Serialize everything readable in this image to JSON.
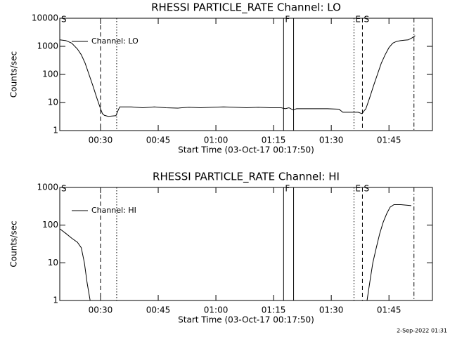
{
  "chart_data": [
    {
      "type": "line",
      "title": "RHESSI PARTICLE_RATE Channel: LO",
      "xlabel": "Start Time (03-Oct-17 00:17:50)",
      "ylabel": "Counts/sec",
      "log_y": true,
      "legend": "upper left",
      "xlim": [
        19.4,
        116.3
      ],
      "ylim": [
        1,
        10000
      ],
      "xticks": [
        {
          "value": 30,
          "label": "00:30"
        },
        {
          "value": 45,
          "label": "00:45"
        },
        {
          "value": 60,
          "label": "01:00"
        },
        {
          "value": 75,
          "label": "01:15"
        },
        {
          "value": 90,
          "label": "01:30"
        },
        {
          "value": 105,
          "label": "01:45"
        }
      ],
      "yticks": [
        1,
        10,
        100,
        1000,
        10000
      ],
      "x": [
        19.4,
        21,
        22.5,
        24,
        25,
        26,
        27,
        28,
        29,
        30,
        30.5,
        31,
        32,
        33,
        34,
        34.5,
        35,
        38,
        41,
        44,
        47,
        50,
        53,
        56,
        59,
        62,
        65,
        68,
        71,
        74,
        77,
        78,
        79,
        80,
        81,
        83,
        86,
        89,
        92,
        93,
        95,
        97,
        98,
        98.5,
        99,
        100,
        101,
        102,
        103,
        104,
        105,
        106,
        107,
        108,
        109,
        110,
        111,
        111.8
      ],
      "series": [
        {
          "name": "Channel: LO",
          "color": "#000000",
          "values": [
            1700,
            1600,
            1300,
            800,
            500,
            250,
            100,
            40,
            15,
            6,
            4,
            3.5,
            3.2,
            3.3,
            3.4,
            5,
            7,
            7,
            6.5,
            7,
            6.5,
            6.3,
            6.8,
            6.5,
            6.8,
            7,
            6.8,
            6.5,
            6.8,
            6.5,
            6.5,
            6,
            6.5,
            5.5,
            6,
            6,
            6,
            6,
            5.8,
            4.5,
            4.5,
            4.5,
            4,
            5,
            6,
            15,
            40,
            100,
            250,
            500,
            900,
            1300,
            1500,
            1600,
            1650,
            1700,
            2000,
            2400
          ]
        }
      ],
      "markers": [
        {
          "x": 19.4,
          "style": "none",
          "label": "S"
        },
        {
          "x": 30,
          "style": "dashed"
        },
        {
          "x": 34.2,
          "style": "dotted"
        },
        {
          "x": 77.6,
          "style": "solid",
          "label": "F"
        },
        {
          "x": 80.2,
          "style": "solid"
        },
        {
          "x": 95.9,
          "style": "dotted",
          "label": "E"
        },
        {
          "x": 98.1,
          "style": "dashed",
          "label": "S"
        },
        {
          "x": 111.5,
          "style": "dashdot"
        }
      ]
    },
    {
      "type": "line",
      "title": "RHESSI PARTICLE_RATE Channel: HI",
      "xlabel": "Start Time (03-Oct-17 00:17:50)",
      "ylabel": "Counts/sec",
      "log_y": true,
      "legend": "upper left",
      "xlim": [
        19.4,
        116.3
      ],
      "ylim": [
        1,
        1000
      ],
      "xticks": [
        {
          "value": 30,
          "label": "00:30"
        },
        {
          "value": 45,
          "label": "00:45"
        },
        {
          "value": 60,
          "label": "01:00"
        },
        {
          "value": 75,
          "label": "01:15"
        },
        {
          "value": 90,
          "label": "01:30"
        },
        {
          "value": 105,
          "label": "01:45"
        }
      ],
      "yticks": [
        1,
        10,
        100,
        1000
      ],
      "x": [
        19.4,
        21,
        22.5,
        24,
        25,
        25.8,
        26.5,
        27.3,
        60,
        99.3,
        100,
        100.8,
        101.7,
        102.6,
        103.5,
        104.4,
        105.3,
        106.3,
        108.1,
        110.8
      ],
      "series": [
        {
          "name": "Channel: HI",
          "color": "#000000",
          "values": [
            80,
            60,
            45,
            35,
            25,
            10,
            3,
            1,
            null,
            1,
            3,
            10,
            25,
            60,
            120,
            200,
            300,
            350,
            350,
            330
          ]
        }
      ],
      "markers": [
        {
          "x": 19.4,
          "style": "none",
          "label": "S"
        },
        {
          "x": 30,
          "style": "dashed"
        },
        {
          "x": 34.2,
          "style": "dotted"
        },
        {
          "x": 77.6,
          "style": "solid",
          "label": "F"
        },
        {
          "x": 80.2,
          "style": "solid"
        },
        {
          "x": 95.9,
          "style": "dotted",
          "label": "E"
        },
        {
          "x": 98.1,
          "style": "dashed",
          "label": "S"
        },
        {
          "x": 111.5,
          "style": "dashdot"
        }
      ]
    }
  ],
  "footer": "2-Sep-2022 01:31"
}
